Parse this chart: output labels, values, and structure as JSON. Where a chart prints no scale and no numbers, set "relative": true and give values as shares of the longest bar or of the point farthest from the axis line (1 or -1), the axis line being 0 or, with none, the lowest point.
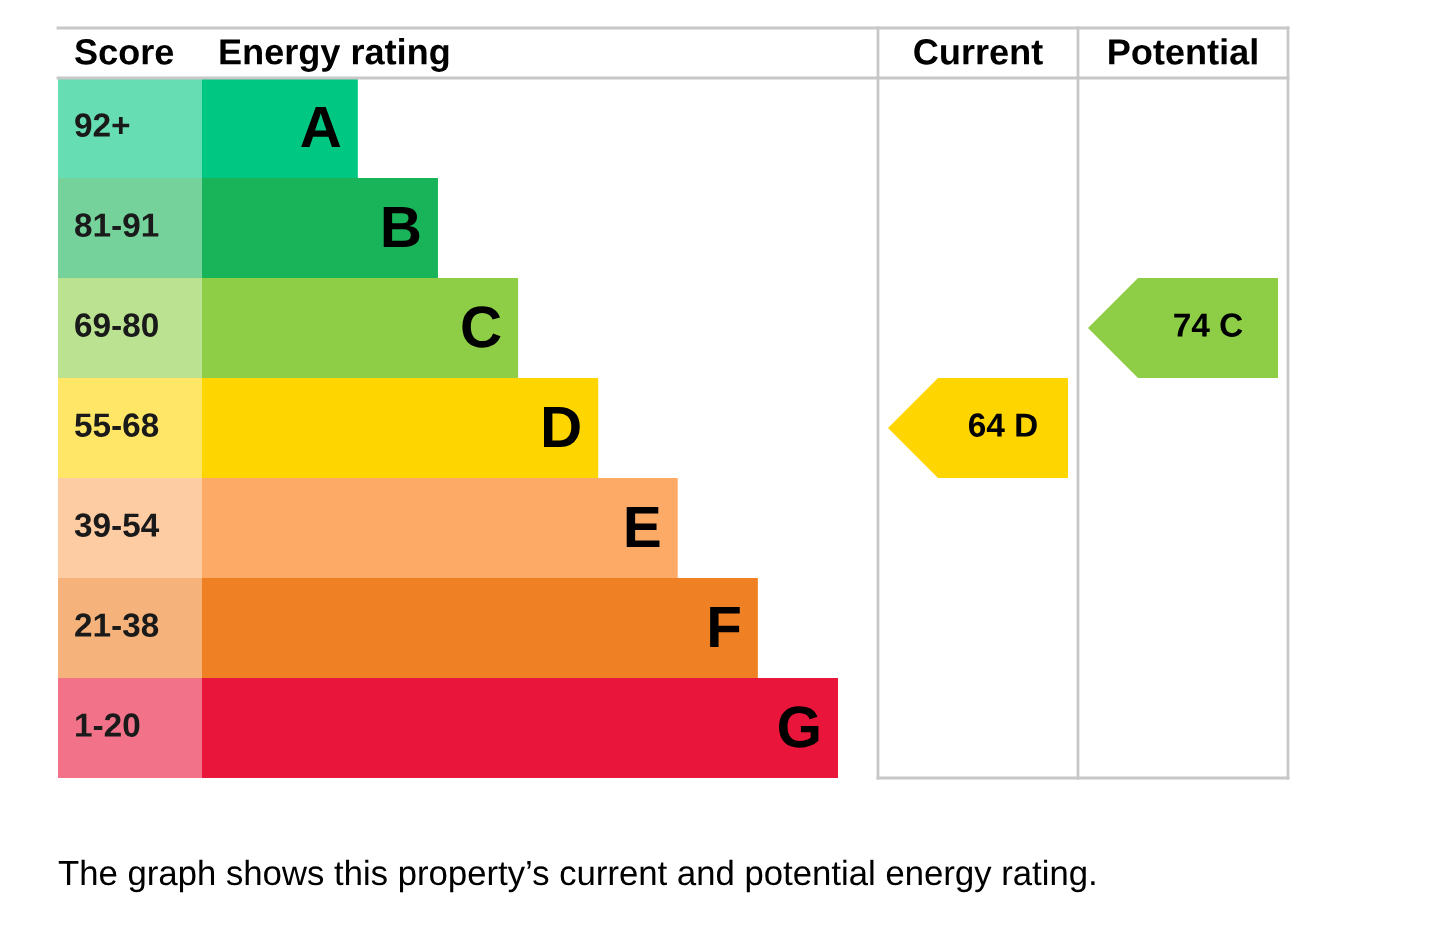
{
  "chart_data": {
    "type": "bar",
    "orientation": "horizontal",
    "relative": true,
    "categories": [
      "A",
      "B",
      "C",
      "D",
      "E",
      "F",
      "G"
    ],
    "values": [
      0.245,
      0.371,
      0.497,
      0.623,
      0.748,
      0.874,
      1
    ],
    "colors": [
      "#00c781",
      "#19b459",
      "#8dce46",
      "#ffd500",
      "#fcaa65",
      "#ef8023",
      "#e9153b"
    ],
    "annotations": [
      "Score",
      "Energy rating",
      "Current",
      "Potential",
      "The graph shows this property’s current and potential energy rating.",
      "92+",
      "81-91",
      "69-80",
      "55-68",
      "39-54",
      "21-38",
      "1-20",
      "64 D",
      "74 C"
    ]
  }
}
